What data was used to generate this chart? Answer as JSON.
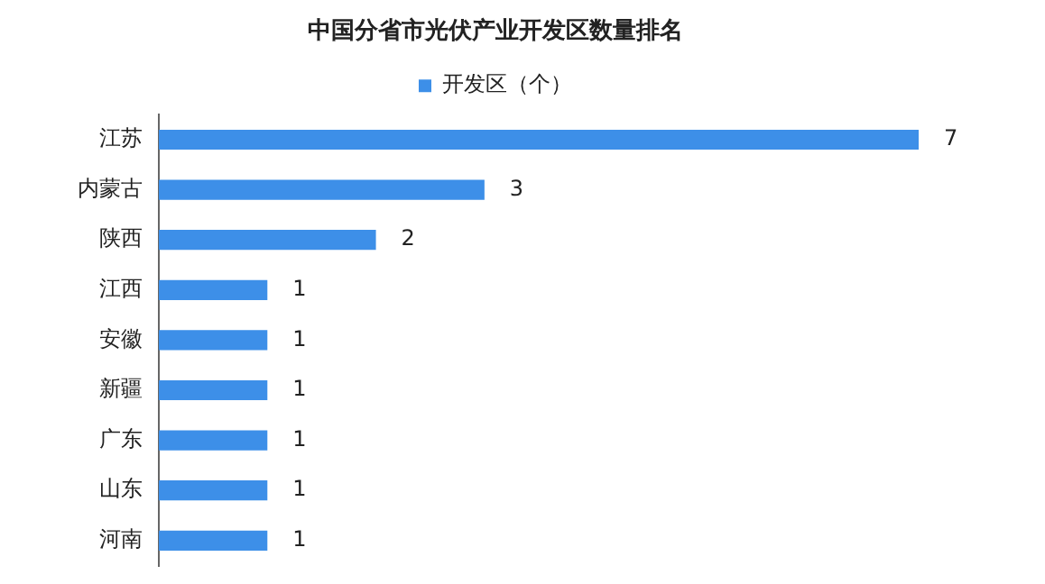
{
  "chart_data": {
    "type": "bar",
    "orientation": "horizontal",
    "title": "中国分省市光伏产业开发区数量排名",
    "categories": [
      "江苏",
      "内蒙古",
      "陕西",
      "江西",
      "安徽",
      "新疆",
      "广东",
      "山东",
      "河南"
    ],
    "series": [
      {
        "name": "开发区（个）",
        "color": "#3d8fe8",
        "values": [
          7,
          3,
          2,
          1,
          1,
          1,
          1,
          1,
          1
        ]
      }
    ],
    "data_labels": true,
    "legend": "top"
  }
}
